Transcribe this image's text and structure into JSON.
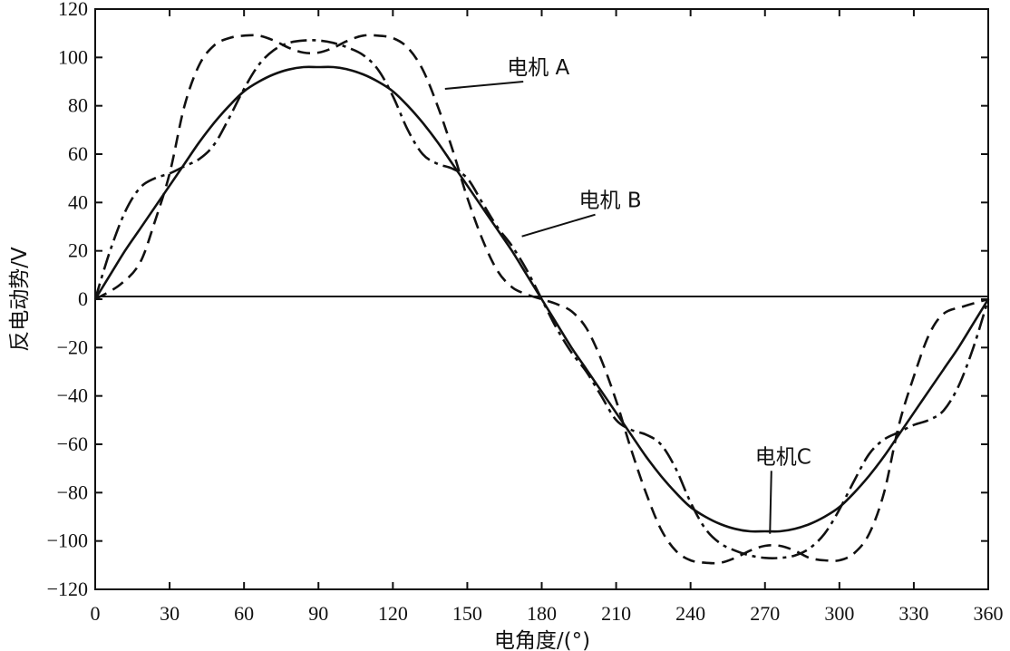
{
  "chart_data": {
    "type": "line",
    "title": "",
    "xlabel": "电角度/(°)",
    "ylabel": "反电动势/V",
    "xlim": [
      0,
      360
    ],
    "ylim": [
      -120,
      120
    ],
    "xticks": [
      0,
      30,
      60,
      90,
      120,
      150,
      180,
      210,
      240,
      270,
      300,
      330,
      360
    ],
    "yticks": [
      120,
      100,
      80,
      60,
      40,
      20,
      0,
      -20,
      -40,
      -60,
      -80,
      -100,
      -120
    ],
    "ytick_labels": [
      "120",
      "100",
      "80",
      "60",
      "40",
      "20",
      "0",
      "−20",
      "−40",
      "−60",
      "−80",
      "−100",
      "−120"
    ],
    "grid": false,
    "legend": "none",
    "zero_line": true,
    "annotations": [
      {
        "text": "电机 A",
        "series": "A",
        "text_x": 166,
        "text_y": 93,
        "point_x": 141,
        "point_y": 87
      },
      {
        "text": "电机 B",
        "series": "B",
        "text_x": 195,
        "text_y": 38,
        "point_x": 172,
        "point_y": 26
      },
      {
        "text": "电机C",
        "series": "C",
        "text_x": 266,
        "text_y": -68,
        "point_x": 272,
        "point_y": -97
      }
    ],
    "series": [
      {
        "id": "A",
        "style": "dashed",
        "x": [
          0,
          10,
          18,
          24,
          30,
          36,
          42,
          48,
          54,
          60,
          66,
          72,
          78,
          84,
          90,
          96,
          102,
          108,
          114,
          120,
          126,
          132,
          138,
          144,
          150,
          156,
          162,
          168,
          174,
          180,
          186,
          192,
          198,
          204,
          210,
          216,
          222,
          228,
          234,
          240,
          246,
          252,
          258,
          264,
          270,
          276,
          282,
          288,
          294,
          300,
          306,
          312,
          318,
          324,
          330,
          336,
          342,
          350,
          360
        ],
        "y": [
          0,
          6,
          15,
          32,
          52,
          80,
          97,
          105,
          108,
          109,
          109,
          107,
          104,
          102,
          102,
          104,
          107,
          109,
          109,
          108,
          104,
          95,
          80,
          62,
          42,
          25,
          12,
          5,
          2,
          0,
          -2,
          -5,
          -12,
          -25,
          -42,
          -62,
          -80,
          -95,
          -104,
          -108,
          -109,
          -109,
          -107,
          -104,
          -102,
          -102,
          -104,
          -107,
          -108,
          -108,
          -105,
          -97,
          -80,
          -52,
          -32,
          -15,
          -6,
          -3,
          0
        ]
      },
      {
        "id": "B",
        "style": "dashdot",
        "x": [
          0,
          6,
          12,
          18,
          24,
          30,
          36,
          42,
          48,
          54,
          60,
          66,
          72,
          78,
          84,
          90,
          96,
          102,
          108,
          114,
          120,
          126,
          132,
          138,
          144,
          150,
          156,
          162,
          168,
          174,
          180,
          186,
          192,
          198,
          204,
          210,
          216,
          222,
          228,
          234,
          240,
          246,
          252,
          258,
          264,
          270,
          276,
          282,
          288,
          294,
          300,
          306,
          312,
          318,
          324,
          330,
          336,
          342,
          348,
          354,
          360
        ],
        "y": [
          0,
          20,
          36,
          46,
          50,
          52,
          55,
          58,
          64,
          75,
          87,
          97,
          103,
          106,
          107,
          107,
          106,
          104,
          101,
          95,
          84,
          70,
          60,
          56,
          54,
          50,
          40,
          30,
          22,
          12,
          0,
          -12,
          -22,
          -30,
          -40,
          -50,
          -54,
          -56,
          -60,
          -70,
          -84,
          -95,
          -101,
          -104,
          -106,
          -107,
          -107,
          -106,
          -103,
          -97,
          -87,
          -75,
          -64,
          -58,
          -55,
          -52,
          -50,
          -46,
          -36,
          -20,
          0
        ]
      },
      {
        "id": "C",
        "style": "solid",
        "x": [
          0,
          6,
          12,
          18,
          24,
          30,
          36,
          42,
          48,
          54,
          60,
          66,
          72,
          78,
          84,
          90,
          96,
          102,
          108,
          114,
          120,
          126,
          132,
          138,
          144,
          150,
          156,
          162,
          168,
          174,
          180,
          186,
          192,
          198,
          204,
          210,
          216,
          222,
          228,
          234,
          240,
          246,
          252,
          258,
          264,
          270,
          276,
          282,
          288,
          294,
          300,
          306,
          312,
          318,
          324,
          330,
          336,
          342,
          348,
          354,
          360
        ],
        "y": [
          0,
          10,
          20,
          29,
          38,
          47,
          56,
          65,
          73,
          80,
          86,
          90,
          93,
          95,
          96,
          96,
          96,
          95,
          93,
          90,
          86,
          80,
          73,
          65,
          56,
          47,
          38,
          29,
          20,
          10,
          0,
          -10,
          -20,
          -29,
          -38,
          -47,
          -56,
          -65,
          -73,
          -80,
          -86,
          -90,
          -93,
          -95,
          -96,
          -96,
          -96,
          -95,
          -93,
          -90,
          -86,
          -80,
          -73,
          -65,
          -56,
          -47,
          -38,
          -29,
          -20,
          -10,
          0
        ]
      }
    ]
  }
}
